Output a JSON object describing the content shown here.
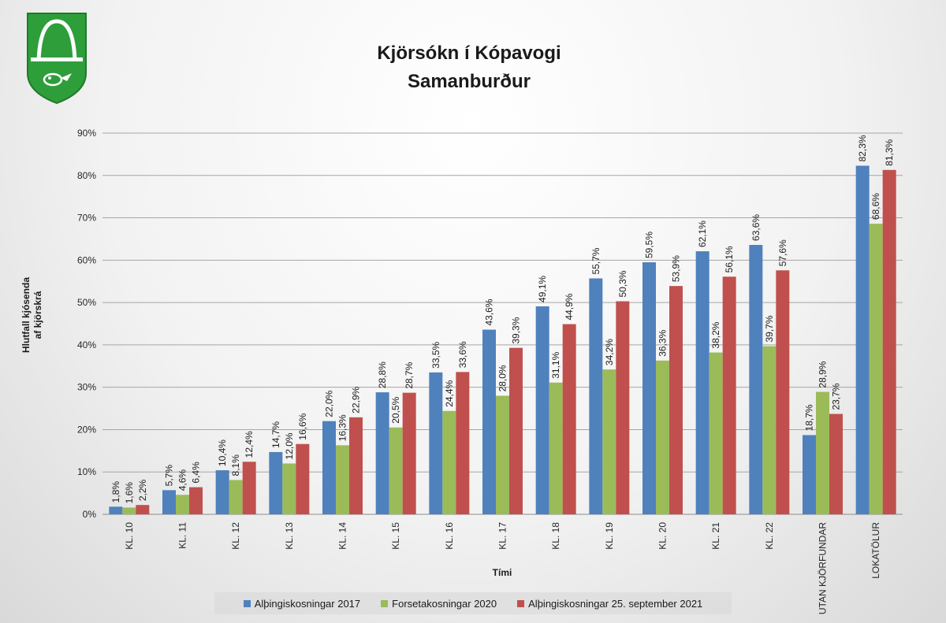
{
  "chart_data": {
    "type": "bar",
    "title": "Kjörsókn  í Kópavogi",
    "subtitle": "Samanburður",
    "xlabel": "Tími",
    "ylabel": [
      "Hlutfall kjósenda",
      "af kjörskrá"
    ],
    "ylim": [
      0,
      90
    ],
    "yticks": [
      "0%",
      "10%",
      "20%",
      "30%",
      "40%",
      "50%",
      "60%",
      "70%",
      "80%",
      "90%"
    ],
    "grid": true,
    "legend_position": "bottom",
    "categories": [
      "KL. 10",
      "KL. 11",
      "KL. 12",
      "KL. 13",
      "KL. 14",
      "KL. 15",
      "KL. 16",
      "KL. 17",
      "KL. 18",
      "KL. 19",
      "KL. 20",
      "KL. 21",
      "KL. 22",
      "UTAN KJÖRFUNDAR",
      "LOKATÖLUR"
    ],
    "series": [
      {
        "name": "Alþingiskosningar 2017",
        "color": "#4f81bd",
        "values": [
          1.8,
          5.7,
          10.4,
          14.7,
          22.0,
          28.8,
          33.5,
          43.6,
          49.1,
          55.7,
          59.5,
          62.1,
          63.6,
          18.7,
          82.3
        ],
        "labels": [
          "1,8%",
          "5,7%",
          "10,4%",
          "14,7%",
          "22,0%",
          "28,8%",
          "33,5%",
          "43,6%",
          "49,1%",
          "55,7%",
          "59,5%",
          "62,1%",
          "63,6%",
          "18,7%",
          "82,3%"
        ]
      },
      {
        "name": "Forsetakosningar 2020",
        "color": "#9bbb59",
        "values": [
          1.6,
          4.6,
          8.1,
          12.0,
          16.3,
          20.5,
          24.4,
          28.0,
          31.1,
          34.2,
          36.3,
          38.2,
          39.7,
          28.9,
          68.6
        ],
        "labels": [
          "1,6%",
          "4,6%",
          "8,1%",
          "12,0%",
          "16,3%",
          "20,5%",
          "24,4%",
          "28,0%",
          "31,1%",
          "34,2%",
          "36,3%",
          "38,2%",
          "39,7%",
          "28,9%",
          "68,6%"
        ]
      },
      {
        "name": "Alþingiskosningar 25. september 2021",
        "color": "#c0504d",
        "values": [
          2.2,
          6.4,
          12.4,
          16.6,
          22.9,
          28.7,
          33.6,
          39.3,
          44.9,
          50.3,
          53.9,
          56.1,
          57.6,
          23.7,
          81.3
        ],
        "labels": [
          "2,2%",
          "6,4%",
          "12,4%",
          "16,6%",
          "22,9%",
          "28,7%",
          "33,6%",
          "39,3%",
          "44,9%",
          "50,3%",
          "53,9%",
          "56,1%",
          "57,6%",
          "23,7%",
          "81,3%"
        ]
      }
    ]
  },
  "logo": {
    "name": "kopavogur-crest",
    "colors": {
      "shield": "#2e9e3a",
      "line": "#ffffff"
    }
  }
}
